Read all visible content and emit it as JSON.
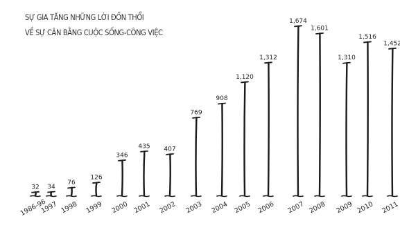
{
  "chart_data": {
    "type": "bar",
    "title_line1": "SỰ GIA TĂNG NHỮNG LỜI ĐỒN THỔI",
    "title_line2": "VỀ SỰ CÂN BẰNG CUỘC SỐNG-CÔNG VIỆC",
    "categories": [
      "1986-96",
      "1997",
      "1998",
      "1999",
      "2000",
      "2001",
      "2002",
      "2003",
      "2004",
      "2005",
      "2006",
      "2007",
      "2008",
      "2009",
      "2010",
      "2011"
    ],
    "value_labels": [
      "32",
      "34",
      "76",
      "126",
      "346",
      "435",
      "407",
      "769",
      "908",
      "1,120",
      "1,312",
      "1,674",
      "1,601",
      "1,310",
      "1,516",
      "1,452"
    ],
    "values": [
      32,
      34,
      76,
      126,
      346,
      435,
      407,
      769,
      908,
      1120,
      1312,
      1674,
      1601,
      1310,
      1516,
      1452
    ],
    "ylim": [
      0,
      1700
    ],
    "grid": false,
    "legend": "none",
    "style": "hand-drawn"
  }
}
